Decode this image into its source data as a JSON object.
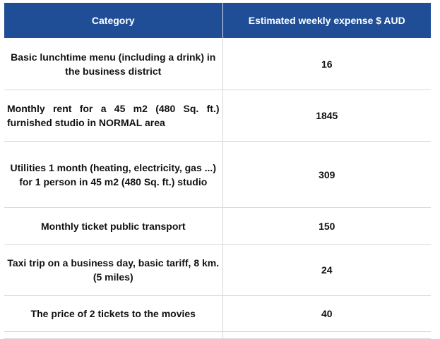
{
  "table": {
    "headers": [
      "Category",
      "Estimated weekly expense $ AUD"
    ],
    "rows": [
      {
        "category": "Basic lunchtime menu (including a drink) in the business district",
        "value": "16"
      },
      {
        "category": "Monthly rent for a 45 m2 (480 Sq. ft.) furnished studio in NORMAL area",
        "value": "1845"
      },
      {
        "category": "Utilities 1 month (heating, electricity, gas ...) for 1 person in 45 m2 (480 Sq. ft.) studio",
        "value": "309"
      },
      {
        "category": "Monthly ticket public transport",
        "value": "150"
      },
      {
        "category": "Taxi trip on a business day, basic tariff, 8 km. (5 miles)",
        "value": "24"
      },
      {
        "category": "The price of 2 tickets to the movies",
        "value": "40"
      }
    ]
  },
  "colors": {
    "header_bg": "#1f4e96",
    "header_text": "#ffffff",
    "grid": "#d9d9d9"
  }
}
